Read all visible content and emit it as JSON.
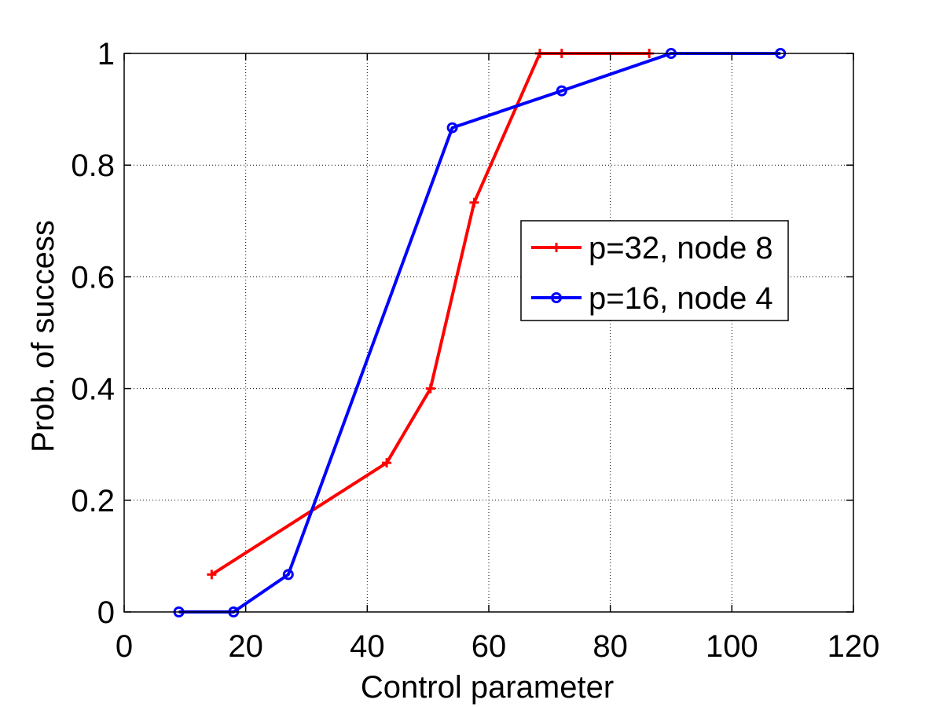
{
  "chart_data": {
    "type": "line",
    "xlabel": "Control parameter",
    "ylabel": "Prob. of success",
    "xlim": [
      0,
      120
    ],
    "ylim": [
      0,
      1
    ],
    "xticks": [
      "0",
      "20",
      "40",
      "60",
      "80",
      "100",
      "120"
    ],
    "yticks": [
      "0",
      "0.2",
      "0.4",
      "0.6",
      "0.8",
      "1"
    ],
    "grid": true,
    "legend_position": "center-right",
    "series": [
      {
        "name": "p=32, node 8",
        "color": "#ff0000",
        "marker": "plus",
        "x": [
          14.4,
          43.2,
          50.4,
          57.6,
          68.4,
          72.0,
          86.4
        ],
        "y": [
          0.067,
          0.267,
          0.4,
          0.733,
          1.0,
          1.0,
          1.0
        ]
      },
      {
        "name": "p=16, node 4",
        "color": "#0000ff",
        "marker": "circle",
        "x": [
          9.0,
          18.0,
          27.0,
          54.0,
          72.0,
          90.0,
          108.0
        ],
        "y": [
          0.0,
          0.0,
          0.067,
          0.867,
          0.933,
          1.0,
          1.0
        ]
      }
    ]
  }
}
